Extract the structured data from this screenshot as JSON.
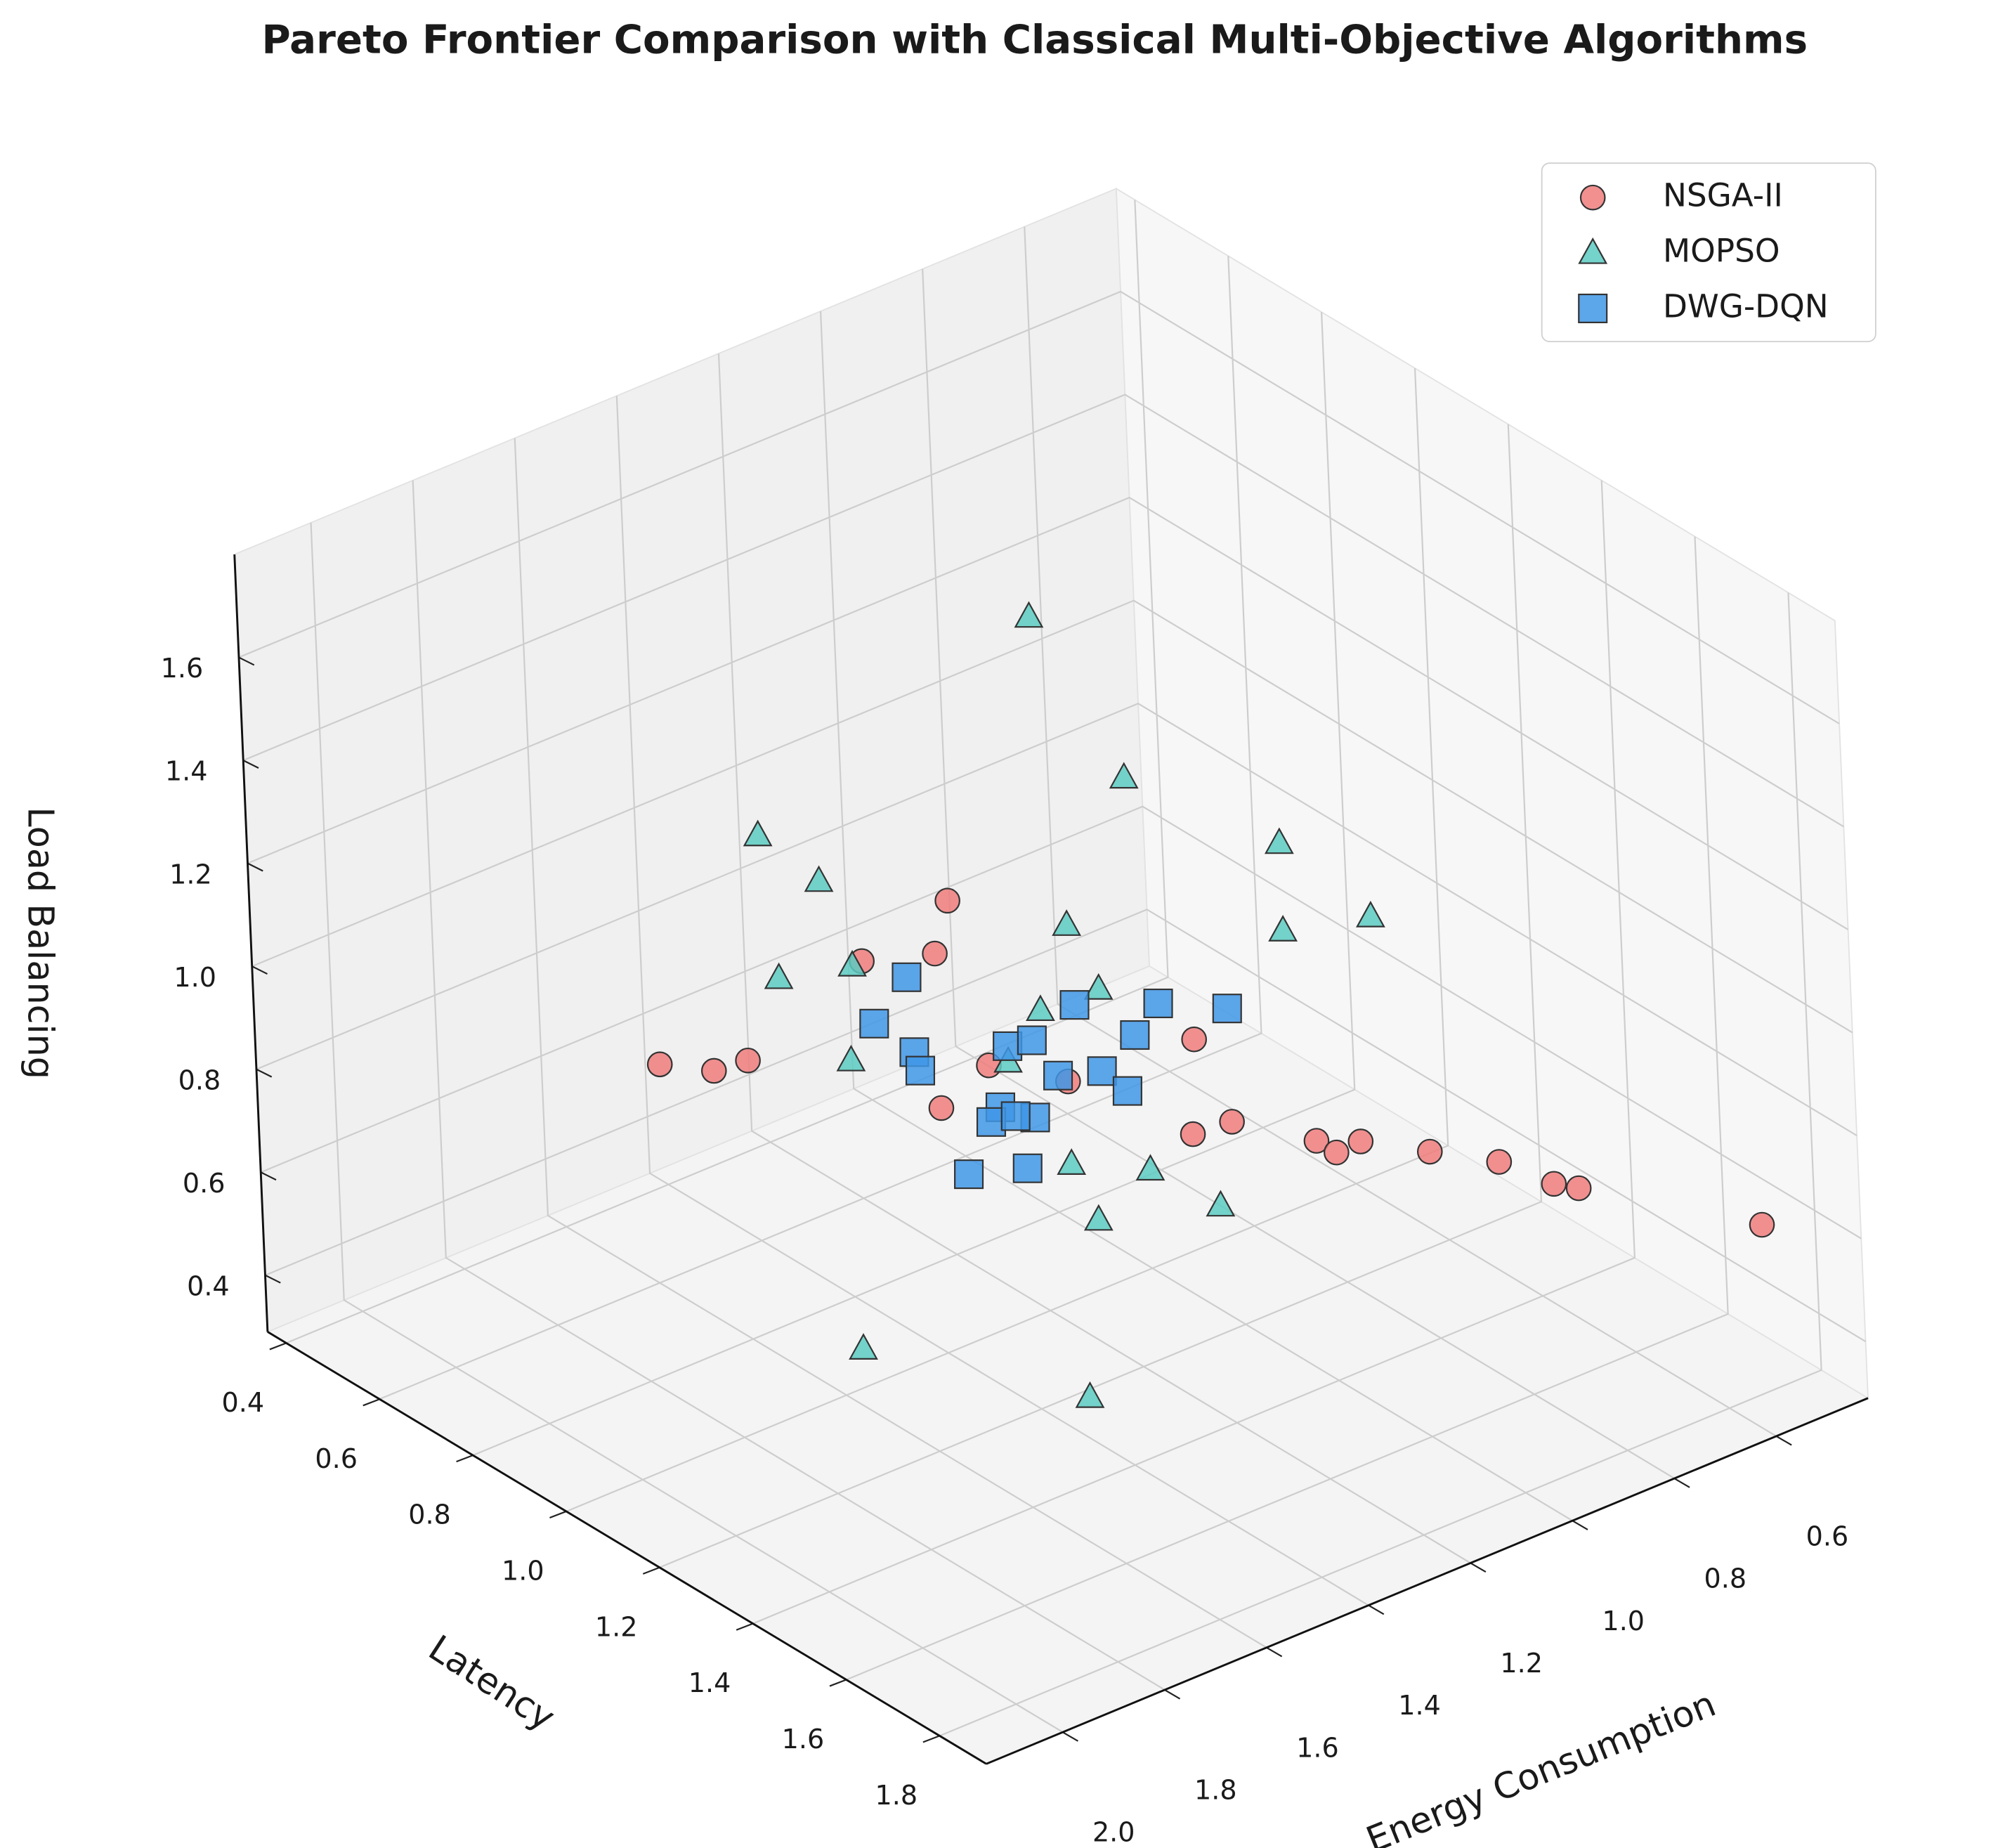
{
  "chart_data": {
    "type": "scatter3d",
    "title": "Pareto Frontier Comparison with Classical Multi-Objective Algorithms",
    "xlabel": "Energy Consumption",
    "ylabel": "Latency",
    "zlabel": "Load Balancing",
    "xlim": [
      0.42,
      2.15
    ],
    "ylim": [
      0.36,
      1.9
    ],
    "zlim": [
      0.29,
      1.8
    ],
    "xticks": [
      0.6,
      0.8,
      {
        "value": 1,
        "label": "1.0"
      },
      1.2,
      1.4,
      1.6,
      1.8,
      {
        "value": 2,
        "label": "2.0"
      }
    ],
    "yticks": [
      0.4,
      0.6,
      0.8,
      {
        "value": 1,
        "label": "1.0"
      },
      1.2,
      1.4,
      1.6,
      1.8
    ],
    "zticks": [
      0.4,
      0.6,
      0.8,
      {
        "value": 1,
        "label": "1.0"
      },
      1.2,
      1.4,
      1.6
    ],
    "grid": true,
    "legend": "upper right",
    "series": [
      {
        "name": "NSGA-II",
        "color": "#f07c7c",
        "marker": "circle",
        "x": [
          1.74,
          1.68,
          1.64,
          1.5,
          1.42,
          1.4,
          1.36,
          1.42,
          1.27,
          1.12,
          1.13,
          1.08,
          0.98,
          0.96,
          0.93,
          0.85,
          0.77,
          0.71,
          0.68,
          0.47
        ],
        "y": [
          0.78,
          0.83,
          0.86,
          0.96,
          1.03,
          1.04,
          1.07,
          1.03,
          1.14,
          1.25,
          1.25,
          1.28,
          1.35,
          1.37,
          1.39,
          1.45,
          1.51,
          1.56,
          1.58,
          1.74
        ],
        "z": [
          0.87,
          0.86,
          0.88,
          1.07,
          1.09,
          1.19,
          0.87,
          0.79,
          0.84,
          0.92,
          0.74,
          0.76,
          0.72,
          0.7,
          0.72,
          0.7,
          0.68,
          0.64,
          0.63,
          0.56
        ]
      },
      {
        "name": "MOPSO",
        "color": "#5ccbc2",
        "marker": "triangle",
        "x": [
          1.29,
          1.19,
          1.62,
          1.55,
          1.01,
          1.01,
          0.91,
          1.26,
          1.51,
          1.6,
          1.23,
          1.3,
          1.52,
          1.34,
          1.27,
          1.18,
          1.1,
          1.24,
          1.52,
          1.35
        ],
        "y": [
          1.12,
          1.2,
          0.88,
          0.93,
          1.33,
          1.33,
          1.41,
          1.14,
          0.95,
          0.89,
          1.17,
          1.12,
          0.95,
          1.09,
          1.14,
          1.21,
          1.27,
          1.16,
          0.95,
          1.25
        ],
        "z": [
          1.74,
          1.43,
          1.32,
          1.23,
          1.3,
          1.13,
          1.16,
          1.14,
          1.06,
          1.04,
          1.02,
          0.98,
          0.88,
          0.88,
          0.68,
          0.67,
          0.6,
          0.57,
          0.32,
          0.32
        ]
      },
      {
        "name": "DWG-DQN",
        "color": "#3f97e6",
        "marker": "square",
        "x": [
          1.45,
          1.49,
          1.45,
          1.44,
          1.34,
          1.31,
          1.26,
          1.16,
          1.08,
          1.19,
          1.28,
          1.23,
          1.2,
          1.35,
          1.36,
          1.31,
          1.33,
          1.39,
          1.32
        ],
        "y": [
          1.0,
          0.97,
          1.01,
          1.01,
          1.09,
          1.11,
          1.15,
          1.22,
          1.28,
          1.2,
          1.13,
          1.17,
          1.19,
          1.08,
          1.07,
          1.11,
          1.09,
          1.05,
          1.1
        ],
        "z": [
          1.04,
          0.95,
          0.9,
          0.86,
          0.91,
          0.92,
          0.99,
          0.99,
          0.98,
          0.93,
          0.85,
          0.86,
          0.82,
          0.79,
          0.76,
          0.77,
          0.77,
          0.66,
          0.67
        ]
      }
    ]
  }
}
